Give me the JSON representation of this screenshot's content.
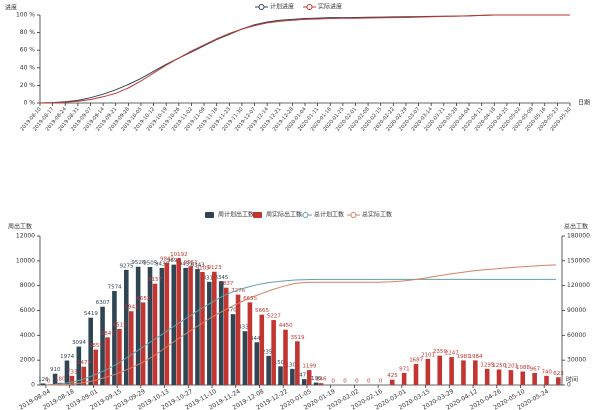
{
  "chart_data": [
    {
      "type": "line",
      "y_label": "进度",
      "x_label": "日期",
      "categories": [
        "2019-08-10",
        "2019-08-17",
        "2019-08-24",
        "2019-08-31",
        "2019-09-07",
        "2019-09-14",
        "2019-09-21",
        "2019-09-28",
        "2019-10-05",
        "2019-10-12",
        "2019-10-19",
        "2019-10-26",
        "2019-11-02",
        "2019-11-09",
        "2019-11-16",
        "2019-11-23",
        "2019-11-30",
        "2019-12-07",
        "2019-12-14",
        "2019-12-21",
        "2019-12-28",
        "2020-01-04",
        "2020-01-11",
        "2020-01-18",
        "2020-01-25",
        "2020-02-01",
        "2020-02-08",
        "2020-02-15",
        "2020-02-22",
        "2020-02-29",
        "2020-03-07",
        "2020-03-14",
        "2020-03-21",
        "2020-03-28",
        "2020-04-04",
        "2020-04-11",
        "2020-04-18",
        "2020-04-25",
        "2020-05-02",
        "2020-05-09",
        "2020-05-16",
        "2020-05-23",
        "2020-05-30"
      ],
      "series": [
        {
          "name": "计划进度",
          "color": "#2f4554",
          "values": [
            0,
            0.5,
            1.5,
            3,
            6,
            10,
            15,
            21,
            28,
            36,
            44,
            51,
            58,
            65,
            72,
            78,
            84,
            89,
            92,
            94,
            95,
            96,
            96.5,
            97,
            97,
            97.2,
            97.4,
            97.6,
            97.8,
            98,
            98.2,
            98.4,
            98.6,
            98.8,
            99,
            99.5,
            100,
            100,
            100,
            100,
            100,
            100,
            100
          ]
        },
        {
          "name": "实际进度",
          "color": "#c23531",
          "values": [
            0,
            0.3,
            1,
            2,
            4,
            7,
            11,
            17,
            25,
            34,
            43,
            51,
            59,
            66,
            73,
            79,
            84,
            88,
            91,
            93,
            94,
            95,
            95.5,
            96,
            96.2,
            96.4,
            96.6,
            96.8,
            97,
            97.2,
            97.6,
            98,
            98.4,
            98.8,
            99.2,
            99.6,
            100,
            100,
            100,
            100,
            100,
            100,
            100
          ]
        }
      ],
      "ylim": [
        0,
        100
      ],
      "yticks": [
        {
          "value": 0,
          "label": "0 %"
        },
        {
          "value": 20,
          "label": "20 %"
        },
        {
          "value": 40,
          "label": "40 %"
        },
        {
          "value": 60,
          "label": "60 %"
        },
        {
          "value": 80,
          "label": "80 %"
        },
        {
          "value": 100,
          "label": "100 %"
        }
      ],
      "grid": false
    },
    {
      "type": "bar",
      "y_label": "周出工数",
      "y2_label": "总出工数",
      "x_label": "时间",
      "categories": [
        "2019-08-04",
        null,
        "2019-08-18",
        null,
        "2019-09-01",
        null,
        "2019-09-15",
        null,
        "2019-09-29",
        null,
        "2019-10-13",
        null,
        "2019-10-27",
        null,
        "2019-11-10",
        null,
        "2019-11-24",
        null,
        "2019-12-08",
        null,
        "2019-12-22",
        null,
        "2020-01-05",
        null,
        "2020-01-19",
        null,
        "2020-02-02",
        null,
        "2020-02-16",
        null,
        "2020-03-01",
        null,
        "2020-03-15",
        null,
        "2020-03-29",
        null,
        "2020-04-12",
        null,
        "2020-04-26",
        null,
        "2020-05-10",
        null,
        "2020-05-24",
        null
      ],
      "series": [
        {
          "name": "周计划出工数",
          "type": "bar",
          "color": "#2f4554",
          "values": [
            126,
            910,
            1974,
            3094,
            5419,
            6307,
            7574,
            9275,
            9526,
            9505,
            9430,
            9695,
            9431,
            9343,
            8311,
            8345,
            5707,
            4331,
            3440,
            2350,
            1500,
            1300,
            471,
            196,
            0,
            0,
            0,
            0,
            0,
            0,
            0,
            0,
            0,
            0,
            0,
            0,
            0,
            0,
            0,
            0,
            0,
            0,
            0,
            0
          ]
        },
        {
          "name": "周实际出工数",
          "type": "bar",
          "color": "#c23531",
          "values": [
            0,
            180,
            733,
            1473,
            2855,
            3841,
            4515,
            5942,
            6652,
            8157,
            9842,
            10192,
            9551,
            9105,
            9123,
            7837,
            7276,
            6655,
            5665,
            5227,
            4450,
            3519,
            1199,
            146,
            0,
            0,
            0,
            0,
            0,
            425,
            971,
            1687,
            2101,
            2359,
            2247,
            1981,
            1984,
            1295,
            1250,
            1201,
            1088,
            967,
            740,
            623
          ]
        },
        {
          "name": "总计划工数",
          "type": "line",
          "axis": "y2",
          "color": "#61a0a8",
          "values": [
            126,
            1036,
            3010,
            6104,
            11523,
            17830,
            25404,
            34679,
            44205,
            53710,
            63140,
            72835,
            82266,
            91609,
            99920,
            108265,
            113972,
            118303,
            121743,
            124093,
            125593,
            126893,
            127364,
            127560,
            127560,
            127560,
            127560,
            127560,
            127560,
            127560,
            127560,
            127560,
            127560,
            127560,
            127560,
            127560,
            127560,
            127560,
            127560,
            127560,
            127560,
            127560,
            127560,
            127560
          ]
        },
        {
          "name": "总实际工数",
          "type": "line",
          "axis": "y2",
          "color": "#d48265",
          "values": [
            0,
            180,
            913,
            2386,
            5241,
            9082,
            13597,
            19539,
            26191,
            34348,
            44190,
            54382,
            63933,
            73038,
            82161,
            89998,
            97274,
            103929,
            109594,
            114821,
            119271,
            122790,
            123989,
            124135,
            124135,
            124135,
            124135,
            124135,
            124135,
            124560,
            125531,
            127218,
            129319,
            131678,
            133925,
            135906,
            137890,
            139185,
            140435,
            141636,
            142724,
            143691,
            144431,
            145054
          ]
        }
      ],
      "ylim": [
        0,
        12000
      ],
      "yticks": [
        0,
        2000,
        4000,
        6000,
        8000,
        10000,
        12000
      ],
      "y2lim": [
        0,
        180000
      ],
      "y2ticks": [
        0,
        30000,
        60000,
        90000,
        120000,
        150000,
        180000
      ],
      "grid": false
    }
  ]
}
